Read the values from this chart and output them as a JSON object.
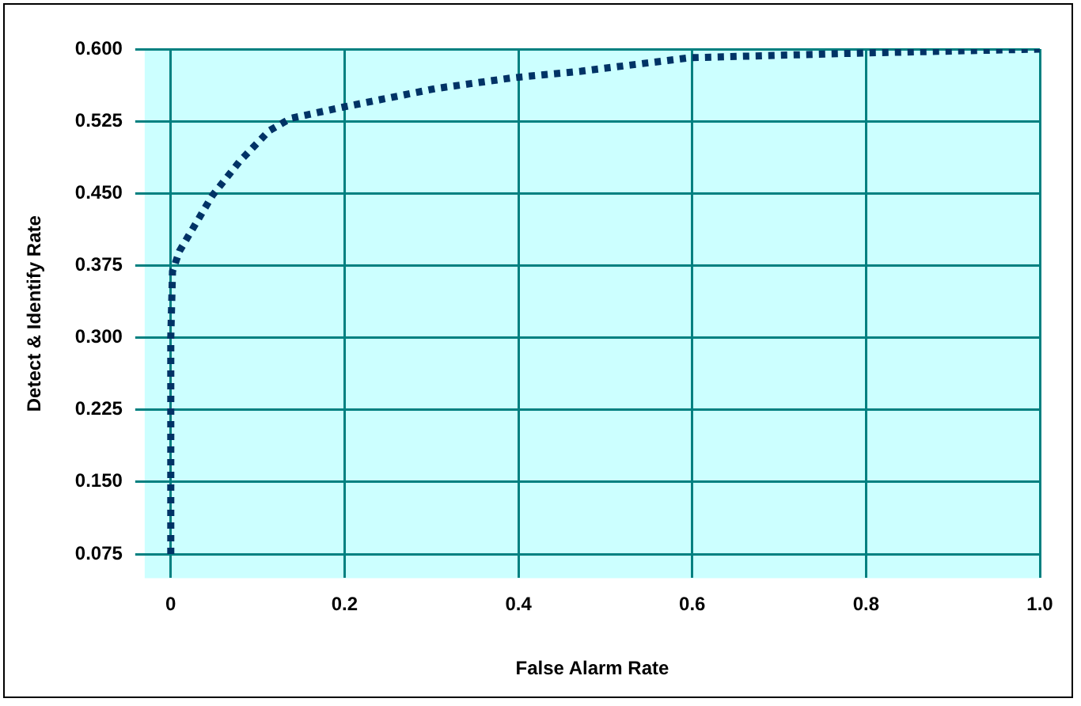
{
  "chart_data": {
    "type": "line",
    "xlabel": "False Alarm Rate",
    "ylabel": "Detect & Identify Rate",
    "series": [
      {
        "color": "#003366",
        "x": [
          0,
          0,
          0.002,
          0.01,
          0.048,
          0.079,
          0.113,
          0.138,
          0.2,
          0.305,
          0.392,
          0.472,
          0.597,
          0.8,
          1.0
        ],
        "values": [
          0.075,
          0.3,
          0.369,
          0.39,
          0.448,
          0.483,
          0.515,
          0.528,
          0.54,
          0.559,
          0.57,
          0.577,
          0.591,
          0.596,
          0.6
        ]
      }
    ],
    "xlim": [
      -0.03,
      1.0
    ],
    "xticks": [
      {
        "value": 0,
        "label": "0"
      },
      0.2,
      0.4,
      0.6,
      0.8,
      {
        "value": 1,
        "label": "1.0"
      }
    ],
    "ylim": [
      0.05,
      0.6
    ],
    "yticks": [
      {
        "value": 0.075,
        "label": "0.075"
      },
      {
        "value": 0.15,
        "label": "0.150"
      },
      {
        "value": 0.225,
        "label": "0.225"
      },
      {
        "value": 0.3,
        "label": "0.300"
      },
      {
        "value": 0.375,
        "label": "0.375"
      },
      {
        "value": 0.45,
        "label": "0.450"
      },
      {
        "value": 0.525,
        "label": "0.525"
      },
      {
        "value": 0.6,
        "label": "0.600"
      }
    ],
    "grid": true,
    "legend": false,
    "marker": "none",
    "line_style": "dotted"
  }
}
